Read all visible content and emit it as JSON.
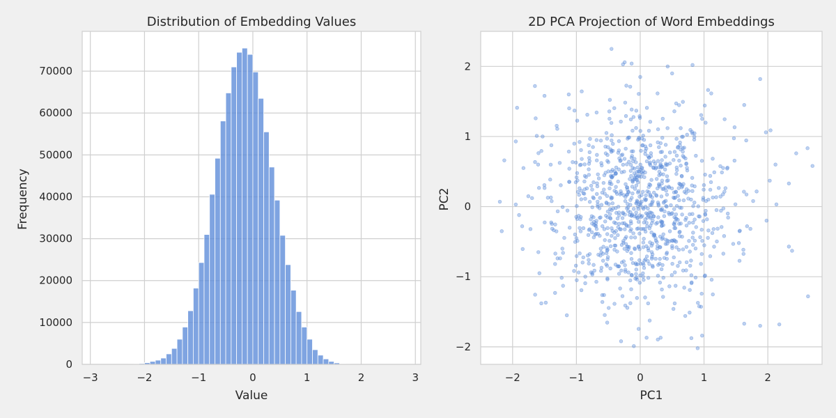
{
  "figure": {
    "background": "#f0f0f0",
    "axes_background": "#ffffff",
    "grid_color": "#cfcfcf",
    "spine_color": "#cfcfcf",
    "text_color": "#262626"
  },
  "chart_data": [
    {
      "type": "bar",
      "title": "Distribution of Embedding Values",
      "xlabel": "Value",
      "ylabel": "Frequency",
      "xlim": [
        -3.15,
        3.1
      ],
      "ylim": [
        0,
        79500
      ],
      "xticks": [
        -3,
        -2,
        -1,
        0,
        1,
        2,
        3
      ],
      "yticks": [
        0,
        10000,
        20000,
        30000,
        40000,
        50000,
        60000,
        70000
      ],
      "grid": true,
      "color": "#5b8bd9",
      "bin_width": 0.1,
      "bin_starts": [
        -2.3,
        -2.2,
        -2.1,
        -2.0,
        -1.9,
        -1.8,
        -1.7,
        -1.6,
        -1.5,
        -1.4,
        -1.3,
        -1.2,
        -1.1,
        -1.0,
        -0.9,
        -0.8,
        -0.7,
        -0.6,
        -0.5,
        -0.4,
        -0.3,
        -0.2,
        -0.1,
        0.0,
        0.1,
        0.2,
        0.3,
        0.4,
        0.5,
        0.6,
        0.7,
        0.8,
        0.9,
        1.0,
        1.1,
        1.2,
        1.3,
        1.4,
        1.5,
        1.6,
        1.7,
        1.8,
        1.9,
        2.0,
        2.1,
        2.2,
        2.3
      ],
      "values": [
        50,
        100,
        200,
        400,
        700,
        1000,
        1500,
        2500,
        3800,
        6000,
        8900,
        12800,
        18200,
        24300,
        31000,
        40600,
        49200,
        58100,
        64800,
        71000,
        74500,
        75500,
        74000,
        69800,
        63500,
        55500,
        47100,
        39200,
        30800,
        23800,
        17700,
        12600,
        8900,
        6000,
        3500,
        2200,
        1300,
        700,
        350,
        150,
        80,
        40,
        20,
        10,
        5,
        3,
        2
      ]
    },
    {
      "type": "scatter",
      "title": "2D PCA Projection of Word Embeddings",
      "xlabel": "PC1",
      "ylabel": "PC2",
      "xlim": [
        -2.5,
        2.85
      ],
      "ylim": [
        -2.25,
        2.5
      ],
      "xticks": [
        -2,
        -1,
        0,
        1,
        2
      ],
      "xtick_labels": [
        "−2",
        "−1",
        "0",
        "1",
        "2"
      ],
      "yticks": [
        -2,
        -1,
        0,
        1,
        2
      ],
      "ytick_labels": [
        "−2",
        "−1",
        "0",
        "1",
        "2"
      ],
      "grid": true,
      "color": "#5b8bd9",
      "alpha": 0.4,
      "n_points": 1000,
      "x_mean": 0.0,
      "x_std": 0.7,
      "y_mean": 0.0,
      "y_std": 0.7,
      "points": [
        [
          -2.2,
          0.07
        ],
        [
          -2.17,
          -0.35
        ],
        [
          -2.13,
          0.66
        ],
        [
          -1.93,
          1.41
        ],
        [
          -1.95,
          0.93
        ],
        [
          -1.95,
          0.03
        ],
        [
          -1.83,
          0.55
        ],
        [
          -1.85,
          -0.28
        ],
        [
          -1.72,
          -0.32
        ],
        [
          -1.65,
          1.72
        ],
        [
          -1.6,
          0.6
        ],
        [
          -1.58,
          -0.95
        ],
        [
          -1.55,
          -1.38
        ],
        [
          -1.53,
          1.0
        ],
        [
          -1.5,
          1.58
        ],
        [
          -1.48,
          -1.37
        ],
        [
          -1.4,
          0.13
        ],
        [
          -1.33,
          -0.67
        ],
        [
          -1.3,
          1.11
        ],
        [
          -1.22,
          -0.6
        ],
        [
          -1.12,
          1.6
        ],
        [
          -1.15,
          -1.55
        ],
        [
          -1.03,
          1.37
        ],
        [
          -1.0,
          -0.45
        ],
        [
          0.82,
          2.02
        ],
        [
          0.9,
          -2.02
        ],
        [
          0.97,
          -1.84
        ],
        [
          1.63,
          1.45
        ],
        [
          1.63,
          -1.67
        ],
        [
          1.77,
          0.08
        ],
        [
          1.88,
          1.82
        ],
        [
          1.88,
          -1.7
        ],
        [
          1.97,
          1.06
        ],
        [
          1.98,
          -0.2
        ],
        [
          2.03,
          0.37
        ],
        [
          2.12,
          0.6
        ],
        [
          2.18,
          -1.68
        ],
        [
          2.33,
          0.33
        ],
        [
          2.33,
          -0.57
        ],
        [
          2.38,
          -0.63
        ],
        [
          2.63,
          -1.28
        ],
        [
          2.7,
          0.58
        ],
        [
          -0.45,
          2.25
        ],
        [
          -0.27,
          2.03
        ],
        [
          0.1,
          -1.87
        ],
        [
          0.32,
          -1.87
        ],
        [
          -0.3,
          -1.92
        ],
        [
          -0.1,
          -1.99
        ],
        [
          0.0,
          1.85
        ],
        [
          0.5,
          1.9
        ]
      ]
    }
  ]
}
